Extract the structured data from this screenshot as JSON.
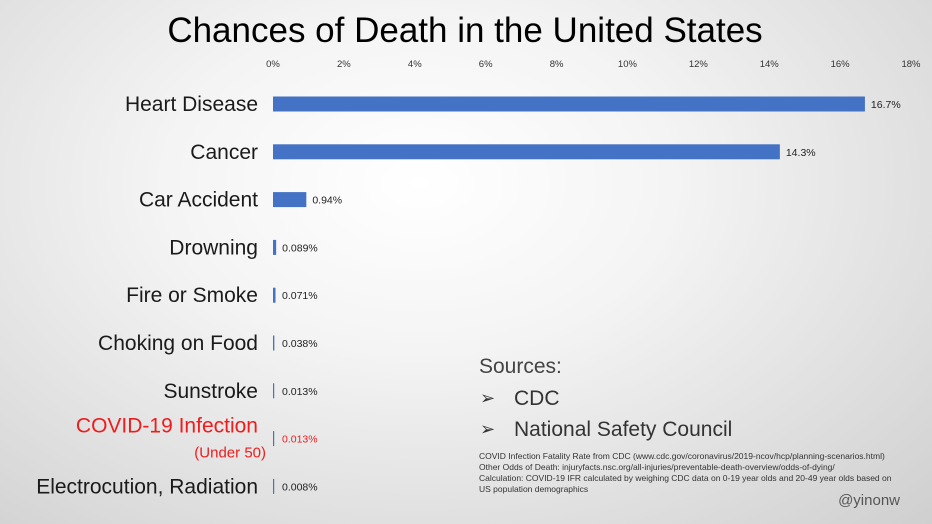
{
  "chart_data": {
    "type": "bar",
    "orientation": "horizontal",
    "title": "Chances of Death in the United States",
    "categories": [
      "Heart Disease",
      "Cancer",
      "Car Accident",
      "Drowning",
      "Fire or Smoke",
      "Choking on Food",
      "Sunstroke",
      "COVID-19 Infection",
      "Electrocution, Radiation"
    ],
    "category_sublabels": [
      "",
      "",
      "",
      "",
      "",
      "",
      "",
      "(Under 50)",
      ""
    ],
    "values": [
      16.7,
      14.3,
      0.94,
      0.089,
      0.071,
      0.038,
      0.013,
      0.013,
      0.008
    ],
    "value_labels": [
      "16.7%",
      "14.3%",
      "0.94%",
      "0.089%",
      "0.071%",
      "0.038%",
      "0.013%",
      "0.013%",
      "0.008%"
    ],
    "highlighted_categories": [
      "COVID-19 Infection"
    ],
    "xlim": [
      0,
      18
    ],
    "x_ticks": [
      0,
      2,
      4,
      6,
      8,
      10,
      12,
      14,
      16,
      18
    ],
    "x_tick_labels": [
      "0%",
      "2%",
      "4%",
      "6%",
      "8%",
      "10%",
      "12%",
      "14%",
      "16%",
      "18%"
    ],
    "x_axis_position": "top",
    "grid": false,
    "legend": "none",
    "colors": {
      "bar": "#4472c4",
      "highlight_text": "#ee1c1c",
      "text": "#1a1a1a"
    }
  },
  "sources": {
    "heading": "Sources:",
    "bullet_icon": "arrow-bullet-icon",
    "items": [
      "CDC",
      "National Safety Council"
    ]
  },
  "notes": [
    "COVID Infection Fatality Rate from CDC  (www.cdc.gov/coronavirus/2019-ncov/hcp/planning-scenarios.html)",
    "Other Odds of Death: injuryfacts.nsc.org/all-injuries/preventable-death-overview/odds-of-dying/",
    "Calculation: COVID-19 IFR calculated by weighing CDC data on 0-19 year olds and 20-49 year olds based on",
    "US population demographics"
  ],
  "handle": "@yinonw"
}
